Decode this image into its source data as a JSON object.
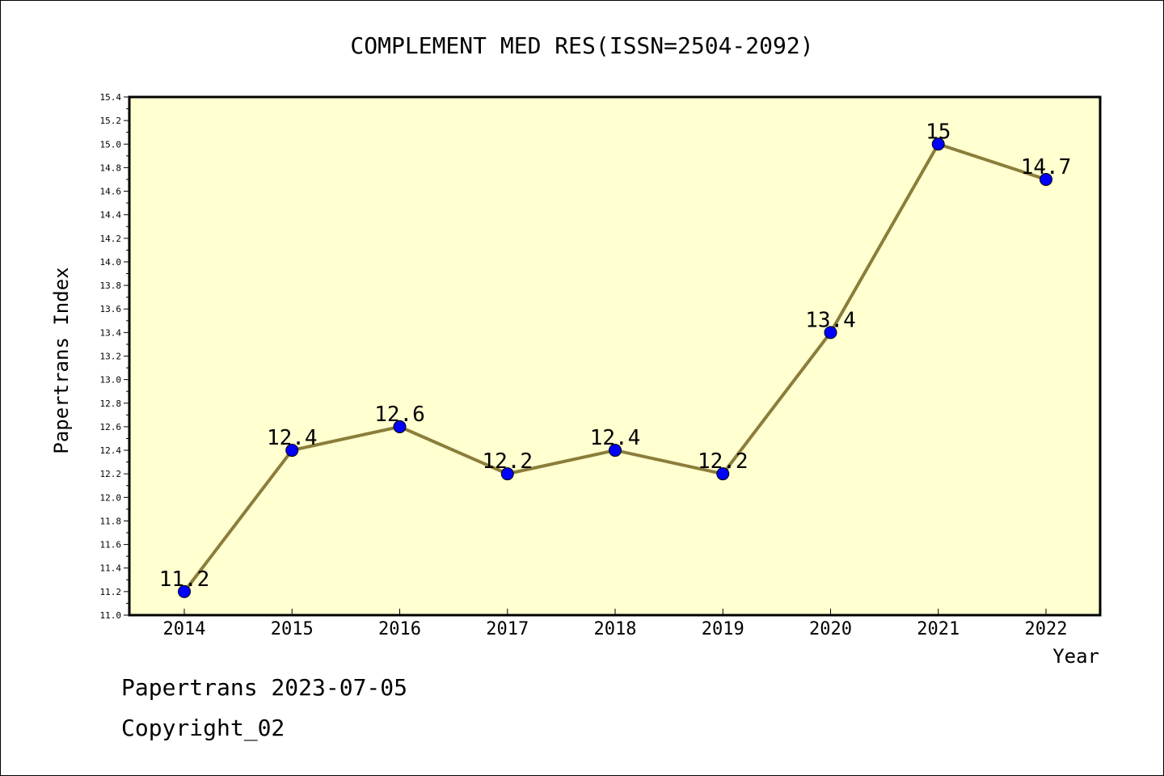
{
  "chart_data": {
    "type": "line",
    "title": "COMPLEMENT MED RES(ISSN=2504-2092)",
    "xlabel": "Year",
    "ylabel": "Papertrans Index",
    "categories": [
      "2014",
      "2015",
      "2016",
      "2017",
      "2018",
      "2019",
      "2020",
      "2021",
      "2022"
    ],
    "values": [
      11.2,
      12.4,
      12.6,
      12.2,
      12.4,
      12.2,
      13.4,
      15,
      14.7
    ],
    "point_labels": [
      "11.2",
      "12.4",
      "12.6",
      "12.2",
      "12.4",
      "12.2",
      "13.4",
      "15",
      "14.7"
    ],
    "ylim": [
      11.0,
      15.4
    ],
    "yticks": [
      "11.0",
      "11.2",
      "11.4",
      "11.6",
      "11.8",
      "12.0",
      "12.2",
      "12.4",
      "12.6",
      "12.8",
      "13.0",
      "13.2",
      "13.4",
      "13.6",
      "13.8",
      "14.0",
      "14.2",
      "14.4",
      "14.6",
      "14.8",
      "15.0",
      "15.2",
      "15.4"
    ],
    "grid": false,
    "legend": "none",
    "colors": {
      "plot_background": "#ffffd0",
      "line": "#8b7d3a",
      "marker": "#0000ff"
    }
  },
  "footer": {
    "line1": "Papertrans 2023-07-05",
    "line2": "Copyright_02"
  }
}
